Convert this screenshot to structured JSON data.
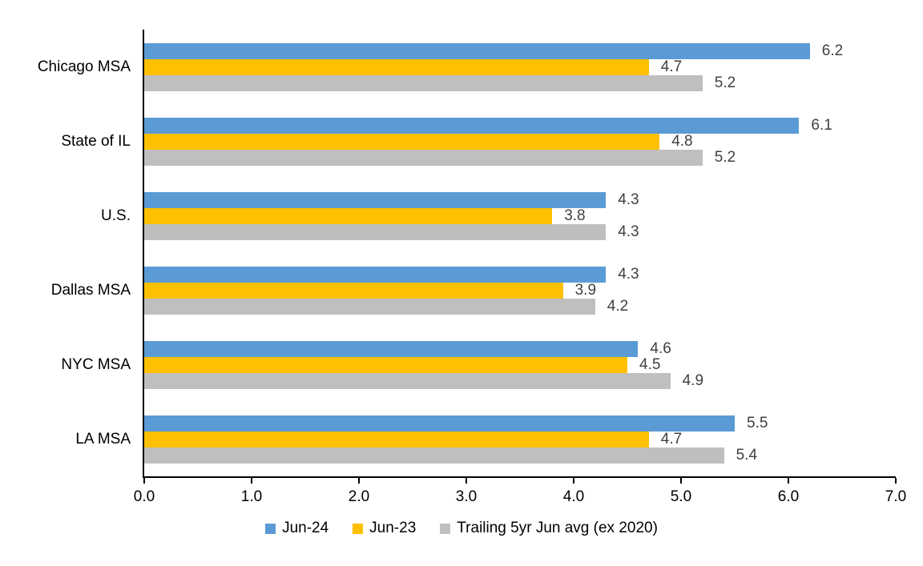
{
  "chart_data": {
    "type": "bar",
    "orientation": "horizontal",
    "categories": [
      "Chicago MSA",
      "State of IL",
      "U.S.",
      "Dallas MSA",
      "NYC MSA",
      "LA MSA"
    ],
    "series": [
      {
        "name": "Jun-24",
        "color": "#5B9BD5",
        "values": [
          6.2,
          6.1,
          4.3,
          4.3,
          4.6,
          5.5
        ]
      },
      {
        "name": "Jun-23",
        "color": "#FFC000",
        "values": [
          4.7,
          4.8,
          3.8,
          3.9,
          4.5,
          4.7
        ]
      },
      {
        "name": "Trailing 5yr Jun avg (ex 2020)",
        "color": "#BFBFBF",
        "values": [
          5.2,
          5.2,
          4.3,
          4.2,
          4.9,
          5.4
        ]
      }
    ],
    "xlim": [
      0,
      7
    ],
    "x_tick_labels": [
      "0.0",
      "1.0",
      "2.0",
      "3.0",
      "4.0",
      "5.0",
      "6.0",
      "7.0"
    ],
    "data_labels_shown": true,
    "data_label_decimals": 1,
    "data_label_color": "#404040",
    "axis_color": "#000000",
    "grid": false,
    "legend_position": "bottom"
  }
}
